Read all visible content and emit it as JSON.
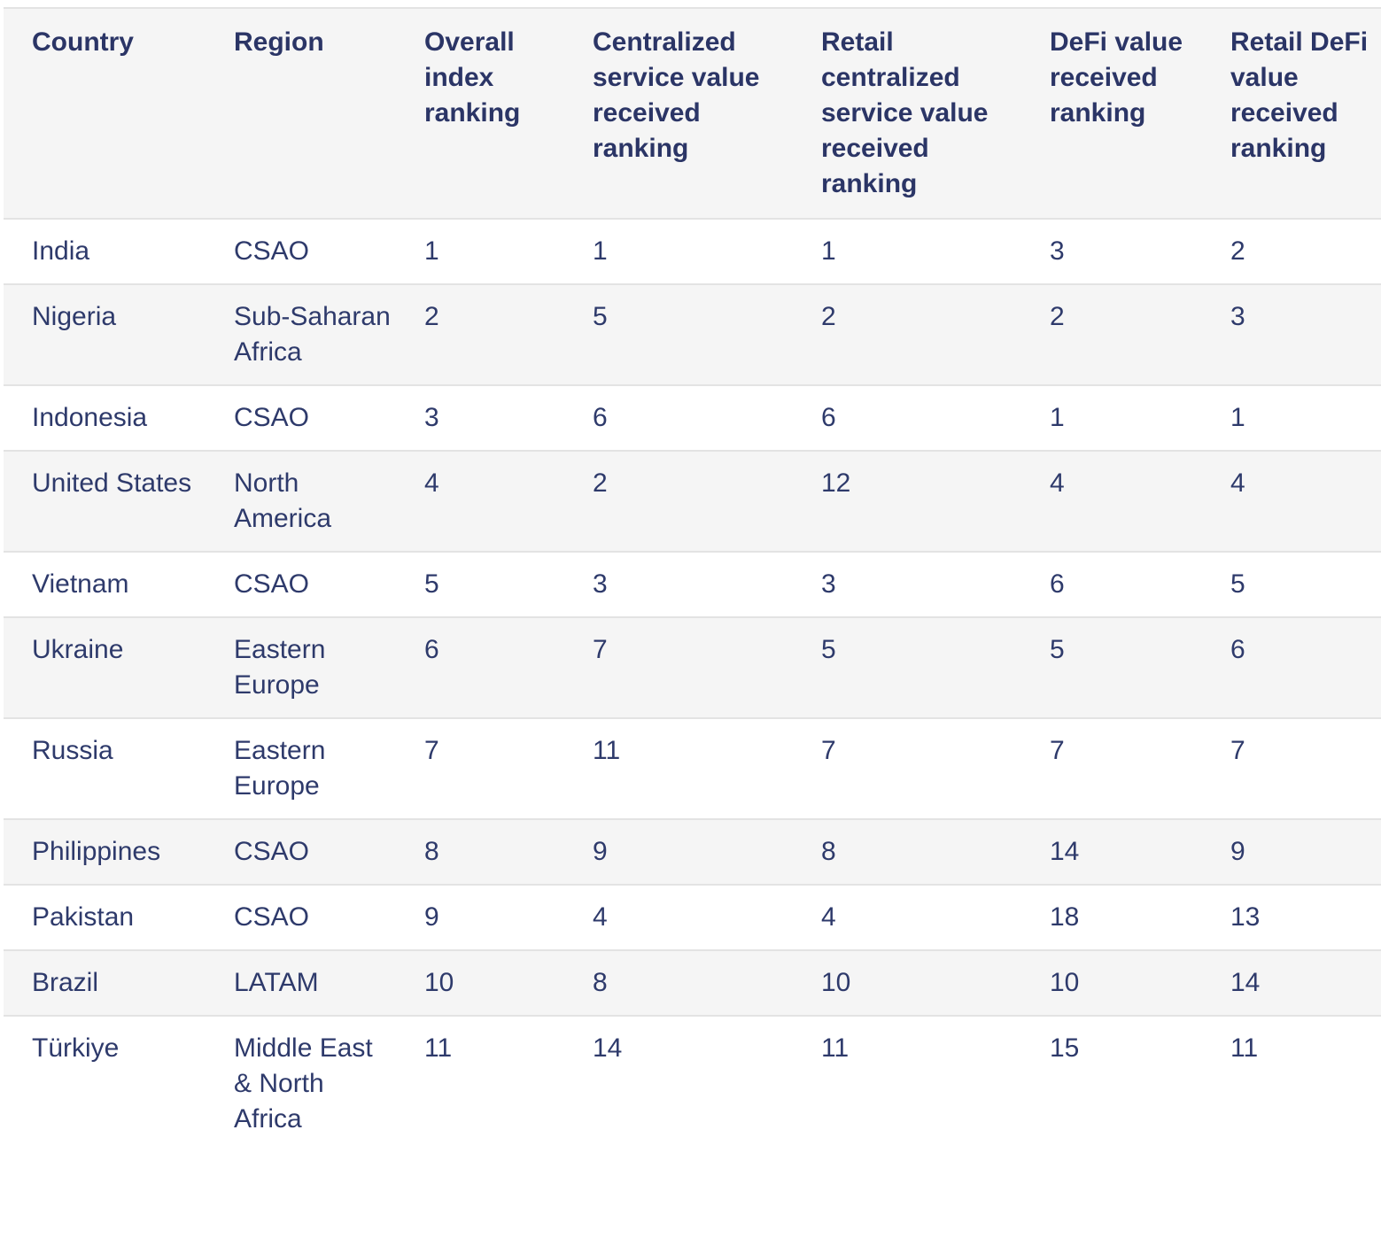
{
  "table": {
    "headers": [
      "Country",
      "Region",
      "Overall index ranking",
      "Centralized service value received ranking",
      "Retail centralized service value received ranking",
      "DeFi value received ranking",
      "Retail DeFi value received ranking"
    ],
    "rows": [
      [
        "India",
        "CSAO",
        "1",
        "1",
        "1",
        "3",
        "2"
      ],
      [
        "Nigeria",
        "Sub-Saharan Africa",
        "2",
        "5",
        "2",
        "2",
        "3"
      ],
      [
        "Indonesia",
        "CSAO",
        "3",
        "6",
        "6",
        "1",
        "1"
      ],
      [
        "United States",
        "North America",
        "4",
        "2",
        "12",
        "4",
        "4"
      ],
      [
        "Vietnam",
        "CSAO",
        "5",
        "3",
        "3",
        "6",
        "5"
      ],
      [
        "Ukraine",
        "Eastern Europe",
        "6",
        "7",
        "5",
        "5",
        "6"
      ],
      [
        "Russia",
        "Eastern Europe",
        "7",
        "11",
        "7",
        "7",
        "7"
      ],
      [
        "Philippines",
        "CSAO",
        "8",
        "9",
        "8",
        "14",
        "9"
      ],
      [
        "Pakistan",
        "CSAO",
        "9",
        "4",
        "4",
        "18",
        "13"
      ],
      [
        "Brazil",
        "LATAM",
        "10",
        "8",
        "10",
        "10",
        "14"
      ],
      [
        "Türkiye",
        "Middle East & North Africa",
        "11",
        "14",
        "11",
        "15",
        "11"
      ]
    ]
  }
}
